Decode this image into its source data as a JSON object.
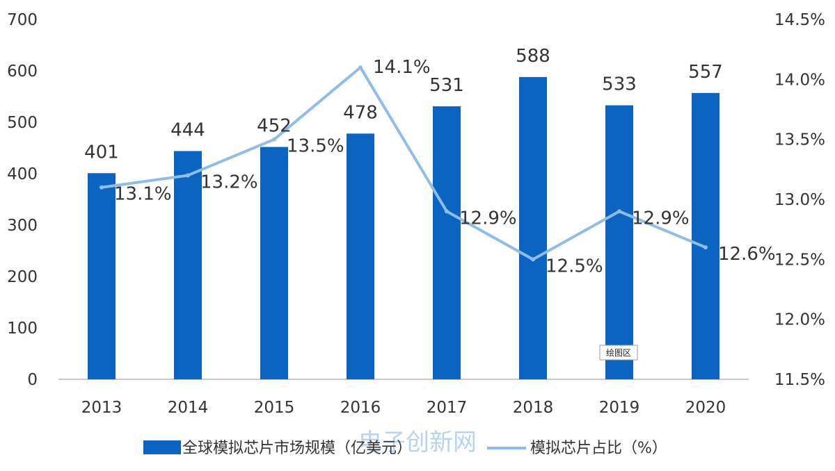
{
  "chart_data": {
    "type": "bar",
    "categories": [
      "2013",
      "2014",
      "2015",
      "2016",
      "2017",
      "2018",
      "2019",
      "2020"
    ],
    "series": [
      {
        "name": "全球模拟芯片市场规模（亿美元）",
        "kind": "bar",
        "axis": "left",
        "values": [
          401,
          444,
          452,
          478,
          531,
          588,
          533,
          557
        ],
        "labels": [
          "401",
          "444",
          "452",
          "478",
          "531",
          "588",
          "533",
          "557"
        ]
      },
      {
        "name": "模拟芯片占比（%）",
        "kind": "line",
        "axis": "right",
        "values": [
          13.1,
          13.2,
          13.5,
          14.1,
          12.9,
          12.5,
          12.9,
          12.6
        ],
        "labels": [
          "13.1%",
          "13.2%",
          "13.5%",
          "14.1%",
          "12.9%",
          "12.5%",
          "12.9%",
          "12.6%"
        ]
      }
    ],
    "y_left": {
      "ylim": [
        0,
        700
      ],
      "ticks": [
        "0",
        "100",
        "200",
        "300",
        "400",
        "500",
        "600",
        "700"
      ]
    },
    "y_right": {
      "ylim": [
        11.5,
        14.5
      ],
      "ticks": [
        "11.5%",
        "12.0%",
        "12.5%",
        "13.0%",
        "13.5%",
        "14.0%",
        "14.5%"
      ]
    },
    "grid": false,
    "legend_position": "bottom",
    "colors": {
      "bar": "#0b64c0",
      "line": "#8fbde8",
      "text": "#333333",
      "axis": "#c8c8c8"
    }
  },
  "tooltip": {
    "text": "绘图区"
  },
  "watermark": {
    "text": "电子创新网"
  }
}
